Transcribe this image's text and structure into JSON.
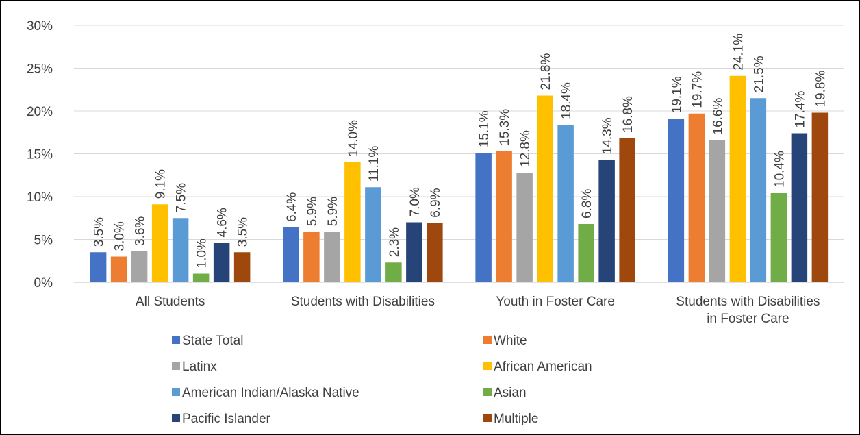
{
  "chart_data": {
    "type": "bar",
    "title": "",
    "xlabel": "",
    "ylabel": "",
    "ylim": [
      0,
      30
    ],
    "yticks": [
      0,
      5,
      10,
      15,
      20,
      25,
      30
    ],
    "ytick_labels": [
      "0%",
      "5%",
      "10%",
      "15%",
      "20%",
      "25%",
      "30%"
    ],
    "grid": true,
    "legend_position": "bottom",
    "categories": [
      [
        "All Students"
      ],
      [
        "Students with Disabilities"
      ],
      [
        "Youth in Foster Care"
      ],
      [
        "Students with Disabilities",
        "in Foster Care"
      ]
    ],
    "series": [
      {
        "name": "State Total",
        "color": "#4472C4",
        "values": [
          3.5,
          6.4,
          15.1,
          19.1
        ],
        "labels": [
          "3.5%",
          "6.4%",
          "15.1%",
          "19.1%"
        ]
      },
      {
        "name": "White",
        "color": "#ED7D31",
        "values": [
          3.0,
          5.9,
          15.3,
          19.7
        ],
        "labels": [
          "3.0%",
          "5.9%",
          "15.3%",
          "19.7%"
        ]
      },
      {
        "name": "Latinx",
        "color": "#A5A5A5",
        "values": [
          3.6,
          5.9,
          12.8,
          16.6
        ],
        "labels": [
          "3.6%",
          "5.9%",
          "12.8%",
          "16.6%"
        ]
      },
      {
        "name": "African American",
        "color": "#FFC000",
        "values": [
          9.1,
          14.0,
          21.8,
          24.1
        ],
        "labels": [
          "9.1%",
          "14.0%",
          "21.8%",
          "24.1%"
        ]
      },
      {
        "name": "American Indian/Alaska Native",
        "color": "#5B9BD5",
        "values": [
          7.5,
          11.1,
          18.4,
          21.5
        ],
        "labels": [
          "7.5%",
          "11.1%",
          "18.4%",
          "21.5%"
        ]
      },
      {
        "name": "Asian",
        "color": "#70AD47",
        "values": [
          1.0,
          2.3,
          6.8,
          10.4
        ],
        "labels": [
          "1.0%",
          "2.3%",
          "6.8%",
          "10.4%"
        ]
      },
      {
        "name": "Pacific Islander",
        "color": "#264478",
        "values": [
          4.6,
          7.0,
          14.3,
          17.4
        ],
        "labels": [
          "4.6%",
          "7.0%",
          "14.3%",
          "17.4%"
        ]
      },
      {
        "name": "Multiple",
        "color": "#9E480E",
        "values": [
          3.5,
          6.9,
          16.8,
          19.8
        ],
        "labels": [
          "3.5%",
          "6.9%",
          "16.8%",
          "19.8%"
        ]
      }
    ]
  }
}
